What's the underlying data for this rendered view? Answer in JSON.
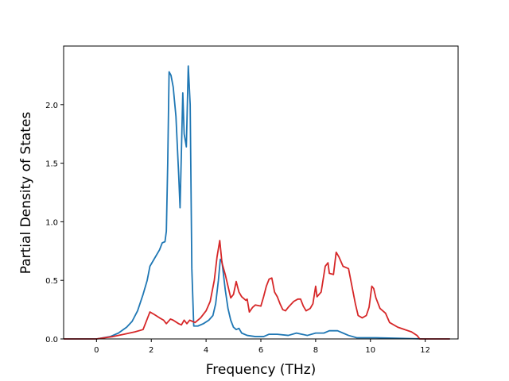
{
  "chart_data": {
    "type": "line",
    "xlabel": "Frequency (THz)",
    "ylabel": "Partial Density of States",
    "xlim": [
      -1.2,
      13.2
    ],
    "ylim": [
      0,
      2.5
    ],
    "grid": false,
    "x_ticks": [
      0,
      2,
      4,
      6,
      8,
      10,
      12
    ],
    "y_ticks": [
      0.0,
      0.5,
      1.0,
      1.5,
      2.0
    ],
    "x_tick_labels": [
      "0",
      "2",
      "4",
      "6",
      "8",
      "10",
      "12"
    ],
    "y_tick_labels": [
      "0.0",
      "0.5",
      "1.0",
      "1.5",
      "2.0"
    ],
    "series": [
      {
        "color": "#1f77b4",
        "points": [
          [
            -1.2,
            0
          ],
          [
            0.0,
            0.0
          ],
          [
            0.5,
            0.02
          ],
          [
            0.8,
            0.05
          ],
          [
            1.1,
            0.1
          ],
          [
            1.3,
            0.15
          ],
          [
            1.5,
            0.24
          ],
          [
            1.7,
            0.38
          ],
          [
            1.85,
            0.5
          ],
          [
            1.95,
            0.62
          ],
          [
            2.1,
            0.68
          ],
          [
            2.3,
            0.76
          ],
          [
            2.4,
            0.82
          ],
          [
            2.5,
            0.83
          ],
          [
            2.55,
            0.92
          ],
          [
            2.6,
            1.5
          ],
          [
            2.65,
            2.28
          ],
          [
            2.72,
            2.25
          ],
          [
            2.8,
            2.15
          ],
          [
            2.9,
            1.9
          ],
          [
            3.0,
            1.4
          ],
          [
            3.05,
            1.12
          ],
          [
            3.1,
            1.6
          ],
          [
            3.15,
            2.1
          ],
          [
            3.2,
            1.75
          ],
          [
            3.28,
            1.64
          ],
          [
            3.35,
            2.33
          ],
          [
            3.42,
            2.0
          ],
          [
            3.48,
            0.6
          ],
          [
            3.55,
            0.11
          ],
          [
            3.7,
            0.11
          ],
          [
            3.9,
            0.13
          ],
          [
            4.1,
            0.16
          ],
          [
            4.25,
            0.2
          ],
          [
            4.35,
            0.3
          ],
          [
            4.45,
            0.5
          ],
          [
            4.52,
            0.68
          ],
          [
            4.58,
            0.66
          ],
          [
            4.7,
            0.42
          ],
          [
            4.8,
            0.26
          ],
          [
            4.9,
            0.16
          ],
          [
            5.0,
            0.1
          ],
          [
            5.1,
            0.08
          ],
          [
            5.2,
            0.09
          ],
          [
            5.3,
            0.05
          ],
          [
            5.5,
            0.03
          ],
          [
            5.8,
            0.02
          ],
          [
            6.1,
            0.02
          ],
          [
            6.3,
            0.04
          ],
          [
            6.6,
            0.04
          ],
          [
            7.0,
            0.03
          ],
          [
            7.3,
            0.05
          ],
          [
            7.5,
            0.04
          ],
          [
            7.7,
            0.03
          ],
          [
            8.0,
            0.05
          ],
          [
            8.3,
            0.05
          ],
          [
            8.5,
            0.07
          ],
          [
            8.8,
            0.07
          ],
          [
            9.0,
            0.05
          ],
          [
            9.2,
            0.03
          ],
          [
            9.5,
            0.01
          ],
          [
            10.2,
            0.01
          ],
          [
            12.0,
            0.0
          ],
          [
            12.9,
            0.0
          ]
        ]
      },
      {
        "color": "#d62728",
        "points": [
          [
            -1.2,
            0
          ],
          [
            0.0,
            0.0
          ],
          [
            0.3,
            0.01
          ],
          [
            0.6,
            0.02
          ],
          [
            1.0,
            0.04
          ],
          [
            1.4,
            0.06
          ],
          [
            1.7,
            0.08
          ],
          [
            1.85,
            0.17
          ],
          [
            1.95,
            0.23
          ],
          [
            2.1,
            0.21
          ],
          [
            2.3,
            0.18
          ],
          [
            2.45,
            0.16
          ],
          [
            2.55,
            0.13
          ],
          [
            2.7,
            0.17
          ],
          [
            2.8,
            0.16
          ],
          [
            3.0,
            0.13
          ],
          [
            3.1,
            0.12
          ],
          [
            3.2,
            0.16
          ],
          [
            3.3,
            0.13
          ],
          [
            3.4,
            0.16
          ],
          [
            3.6,
            0.14
          ],
          [
            3.8,
            0.18
          ],
          [
            4.0,
            0.24
          ],
          [
            4.15,
            0.32
          ],
          [
            4.3,
            0.5
          ],
          [
            4.4,
            0.7
          ],
          [
            4.5,
            0.84
          ],
          [
            4.58,
            0.65
          ],
          [
            4.7,
            0.55
          ],
          [
            4.8,
            0.45
          ],
          [
            4.9,
            0.35
          ],
          [
            5.0,
            0.38
          ],
          [
            5.1,
            0.49
          ],
          [
            5.2,
            0.4
          ],
          [
            5.3,
            0.36
          ],
          [
            5.45,
            0.33
          ],
          [
            5.5,
            0.34
          ],
          [
            5.58,
            0.23
          ],
          [
            5.7,
            0.27
          ],
          [
            5.8,
            0.29
          ],
          [
            6.0,
            0.28
          ],
          [
            6.1,
            0.36
          ],
          [
            6.2,
            0.45
          ],
          [
            6.3,
            0.51
          ],
          [
            6.4,
            0.52
          ],
          [
            6.5,
            0.4
          ],
          [
            6.6,
            0.36
          ],
          [
            6.7,
            0.3
          ],
          [
            6.8,
            0.25
          ],
          [
            6.9,
            0.24
          ],
          [
            7.0,
            0.27
          ],
          [
            7.2,
            0.32
          ],
          [
            7.35,
            0.34
          ],
          [
            7.45,
            0.34
          ],
          [
            7.55,
            0.28
          ],
          [
            7.65,
            0.24
          ],
          [
            7.8,
            0.26
          ],
          [
            7.9,
            0.3
          ],
          [
            8.0,
            0.45
          ],
          [
            8.05,
            0.36
          ],
          [
            8.2,
            0.4
          ],
          [
            8.35,
            0.62
          ],
          [
            8.45,
            0.65
          ],
          [
            8.5,
            0.56
          ],
          [
            8.65,
            0.55
          ],
          [
            8.75,
            0.74
          ],
          [
            8.85,
            0.7
          ],
          [
            9.0,
            0.62
          ],
          [
            9.1,
            0.61
          ],
          [
            9.2,
            0.6
          ],
          [
            9.3,
            0.48
          ],
          [
            9.45,
            0.3
          ],
          [
            9.55,
            0.2
          ],
          [
            9.7,
            0.18
          ],
          [
            9.85,
            0.2
          ],
          [
            9.95,
            0.27
          ],
          [
            10.05,
            0.45
          ],
          [
            10.12,
            0.43
          ],
          [
            10.2,
            0.35
          ],
          [
            10.35,
            0.26
          ],
          [
            10.55,
            0.22
          ],
          [
            10.7,
            0.14
          ],
          [
            11.0,
            0.1
          ],
          [
            11.5,
            0.06
          ],
          [
            11.7,
            0.03
          ],
          [
            11.8,
            0.0
          ],
          [
            12.9,
            0.0
          ]
        ]
      }
    ]
  }
}
